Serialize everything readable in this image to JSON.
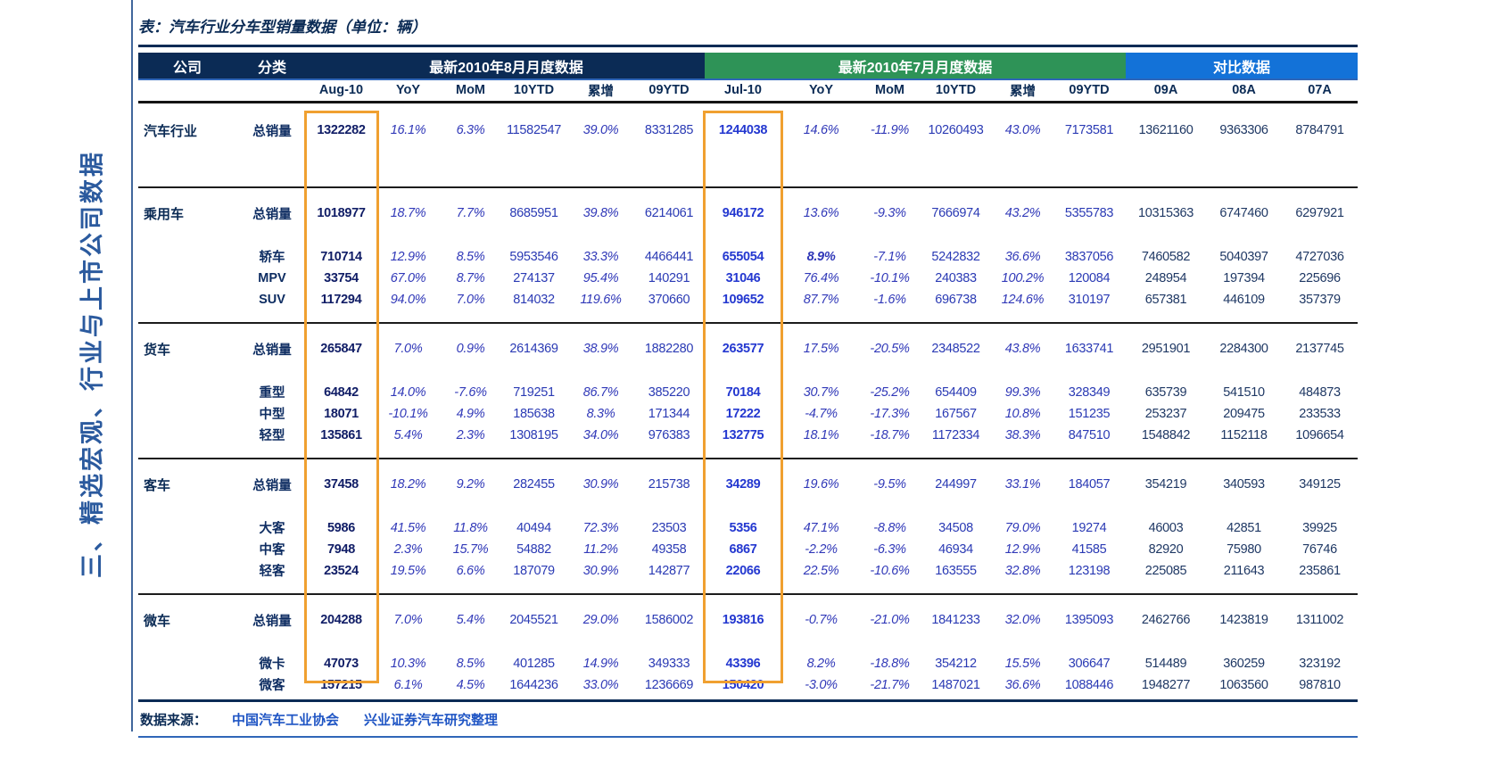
{
  "title": "表：汽车行业分车型销量数据（单位：辆）",
  "sidebar_text": "三、精选宏观、行业与上市公司数据",
  "highlight_color": "#f0a030",
  "header": {
    "company": "公司",
    "category": "分类",
    "groups": [
      {
        "label": "最新2010年8月月度数据",
        "color": "#0b2b55"
      },
      {
        "label": "最新2010年7月月度数据",
        "color": "#2e9357"
      },
      {
        "label": "对比数据",
        "color": "#1372d8"
      }
    ],
    "columns": [
      "Aug-10",
      "YoY",
      "MoM",
      "10YTD",
      "累增",
      "09YTD",
      "Jul-10",
      "YoY",
      "MoM",
      "10YTD",
      "累增",
      "09YTD",
      "09A",
      "08A",
      "07A"
    ]
  },
  "blocks": [
    {
      "company": "汽车行业",
      "rows": [
        {
          "category": "总销量",
          "values": [
            "1322282",
            "16.1%",
            "6.3%",
            "11582547",
            "39.0%",
            "8331285",
            "1244038",
            "14.6%",
            "-11.9%",
            "10260493",
            "43.0%",
            "7173581",
            "13621160",
            "9363306",
            "8784791"
          ]
        }
      ]
    },
    {
      "company": "乘用车",
      "rows": [
        {
          "category": "总销量",
          "values": [
            "1018977",
            "18.7%",
            "7.7%",
            "8685951",
            "39.8%",
            "6214061",
            "946172",
            "13.6%",
            "-9.3%",
            "7666974",
            "43.2%",
            "5355783",
            "10315363",
            "6747460",
            "6297921"
          ]
        },
        {
          "category": "轿车",
          "emphasis": [
            7
          ],
          "values": [
            "710714",
            "12.9%",
            "8.5%",
            "5953546",
            "33.3%",
            "4466441",
            "655054",
            "8.9%",
            "-7.1%",
            "5242832",
            "36.6%",
            "3837056",
            "7460582",
            "5040397",
            "4727036"
          ]
        },
        {
          "category": "MPV",
          "values": [
            "33754",
            "67.0%",
            "8.7%",
            "274137",
            "95.4%",
            "140291",
            "31046",
            "76.4%",
            "-10.1%",
            "240383",
            "100.2%",
            "120084",
            "248954",
            "197394",
            "225696"
          ]
        },
        {
          "category": "SUV",
          "values": [
            "117294",
            "94.0%",
            "7.0%",
            "814032",
            "119.6%",
            "370660",
            "109652",
            "87.7%",
            "-1.6%",
            "696738",
            "124.6%",
            "310197",
            "657381",
            "446109",
            "357379"
          ]
        }
      ]
    },
    {
      "company": "货车",
      "rows": [
        {
          "category": "总销量",
          "values": [
            "265847",
            "7.0%",
            "0.9%",
            "2614369",
            "38.9%",
            "1882280",
            "263577",
            "17.5%",
            "-20.5%",
            "2348522",
            "43.8%",
            "1633741",
            "2951901",
            "2284300",
            "2137745"
          ]
        },
        {
          "category": "重型",
          "values": [
            "64842",
            "14.0%",
            "-7.6%",
            "719251",
            "86.7%",
            "385220",
            "70184",
            "30.7%",
            "-25.2%",
            "654409",
            "99.3%",
            "328349",
            "635739",
            "541510",
            "484873"
          ]
        },
        {
          "category": "中型",
          "values": [
            "18071",
            "-10.1%",
            "4.9%",
            "185638",
            "8.3%",
            "171344",
            "17222",
            "-4.7%",
            "-17.3%",
            "167567",
            "10.8%",
            "151235",
            "253237",
            "209475",
            "233533"
          ]
        },
        {
          "category": "轻型",
          "values": [
            "135861",
            "5.4%",
            "2.3%",
            "1308195",
            "34.0%",
            "976383",
            "132775",
            "18.1%",
            "-18.7%",
            "1172334",
            "38.3%",
            "847510",
            "1548842",
            "1152118",
            "1096654"
          ]
        }
      ]
    },
    {
      "company": "客车",
      "rows": [
        {
          "category": "总销量",
          "values": [
            "37458",
            "18.2%",
            "9.2%",
            "282455",
            "30.9%",
            "215738",
            "34289",
            "19.6%",
            "-9.5%",
            "244997",
            "33.1%",
            "184057",
            "354219",
            "340593",
            "349125"
          ]
        },
        {
          "category": "大客",
          "values": [
            "5986",
            "41.5%",
            "11.8%",
            "40494",
            "72.3%",
            "23503",
            "5356",
            "47.1%",
            "-8.8%",
            "34508",
            "79.0%",
            "19274",
            "46003",
            "42851",
            "39925"
          ]
        },
        {
          "category": "中客",
          "values": [
            "7948",
            "2.3%",
            "15.7%",
            "54882",
            "11.2%",
            "49358",
            "6867",
            "-2.2%",
            "-6.3%",
            "46934",
            "12.9%",
            "41585",
            "82920",
            "75980",
            "76746"
          ]
        },
        {
          "category": "轻客",
          "values": [
            "23524",
            "19.5%",
            "6.6%",
            "187079",
            "30.9%",
            "142877",
            "22066",
            "22.5%",
            "-10.6%",
            "163555",
            "32.8%",
            "123198",
            "225085",
            "211643",
            "235861"
          ]
        }
      ]
    },
    {
      "company": "微车",
      "rows": [
        {
          "category": "总销量",
          "values": [
            "204288",
            "7.0%",
            "5.4%",
            "2045521",
            "29.0%",
            "1586002",
            "193816",
            "-0.7%",
            "-21.0%",
            "1841233",
            "32.0%",
            "1395093",
            "2462766",
            "1423819",
            "1311002"
          ]
        },
        {
          "category": "微卡",
          "values": [
            "47073",
            "10.3%",
            "8.5%",
            "401285",
            "14.9%",
            "349333",
            "43396",
            "8.2%",
            "-18.8%",
            "354212",
            "15.5%",
            "306647",
            "514489",
            "360259",
            "323192"
          ]
        },
        {
          "category": "微客",
          "values": [
            "157215",
            "6.1%",
            "4.5%",
            "1644236",
            "33.0%",
            "1236669",
            "150420",
            "-3.0%",
            "-21.7%",
            "1487021",
            "36.6%",
            "1088446",
            "1948277",
            "1063560",
            "987810"
          ]
        }
      ]
    }
  ],
  "footer": {
    "label": "数据来源：",
    "sources": [
      "中国汽车工业协会",
      "兴业证券汽车研究整理"
    ]
  }
}
